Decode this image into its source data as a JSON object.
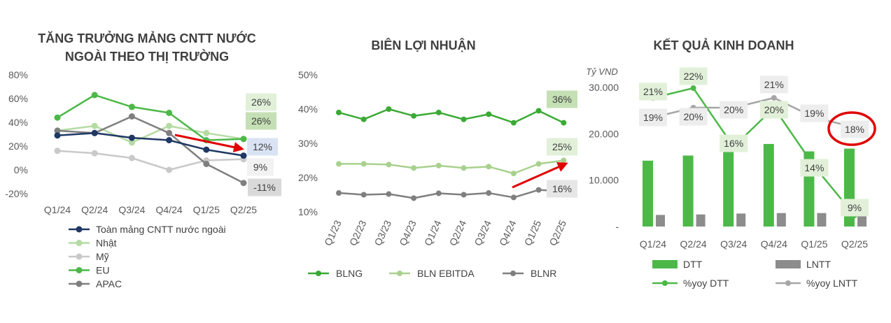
{
  "chart_data": [
    {
      "type": "line",
      "title": "TĂNG TRƯỞNG MẢNG CNTT NƯỚC NGOÀI THEO THỊ TRƯỜNG",
      "title_lines": [
        "TĂNG TRƯỞNG MẢNG CNTT NƯỚC",
        "NGOÀI THEO THỊ TRƯỜNG"
      ],
      "categories": [
        "Q1/24",
        "Q2/24",
        "Q3/24",
        "Q4/24",
        "Q1/25",
        "Q2/25"
      ],
      "ylim": [
        -20,
        80
      ],
      "yticks": [
        "80%",
        "60%",
        "40%",
        "20%",
        "0%",
        "-20%"
      ],
      "legend_position": "bottom-left",
      "series": [
        {
          "name": "Toàn mảng CNTT nước ngoài",
          "values": [
            29,
            31,
            27,
            25,
            17,
            12
          ],
          "color": "#1f3864",
          "end_label": "12%",
          "label_bg": "#dae3f3"
        },
        {
          "name": "Nhật",
          "values": [
            33,
            37,
            23,
            37,
            31,
            26
          ],
          "color": "#b4dba3",
          "end_label": "26%",
          "label_bg": "#e2f0d9"
        },
        {
          "name": "Mỹ",
          "values": [
            16,
            14,
            10,
            0,
            8,
            9
          ],
          "color": "#c9c9c9",
          "end_label": "9%",
          "label_bg": "#f2f2f2"
        },
        {
          "name": "EU",
          "values": [
            44,
            63,
            53,
            48,
            25,
            26
          ],
          "color": "#4cb848",
          "end_label": "26%",
          "label_bg": "#c5e0b4"
        },
        {
          "name": "APAC",
          "values": [
            33,
            31,
            45,
            31,
            5,
            -11
          ],
          "color": "#7f7f7f",
          "end_label": "-11%",
          "label_bg": "#d9d9d9"
        }
      ]
    },
    {
      "type": "line",
      "title": "BIÊN LỢI NHUẬN",
      "categories": [
        "Q1/23",
        "Q2/23",
        "Q3/23",
        "Q4/23",
        "Q1/24",
        "Q2/24",
        "Q3/24",
        "Q4/24",
        "Q1/25",
        "Q2/25"
      ],
      "ylim": [
        10,
        50
      ],
      "yticks": [
        "50%",
        "40%",
        "30%",
        "20%",
        "10%"
      ],
      "legend_position": "bottom",
      "series": [
        {
          "name": "BLNG",
          "values": [
            39,
            37,
            40,
            38,
            39,
            37,
            38.5,
            36,
            39.5,
            36
          ],
          "color": "#3aaa35",
          "end_label": "36%",
          "label_bg": "#c5e0b4"
        },
        {
          "name": "BLN EBITDA",
          "values": [
            24,
            24,
            23.8,
            22.8,
            23.5,
            22.8,
            23.2,
            21.2,
            24,
            25
          ],
          "color": "#a9d18e",
          "end_label": "25%",
          "label_bg": "#e2f0d9"
        },
        {
          "name": "BLNR",
          "values": [
            15.5,
            15,
            15.2,
            14,
            15.4,
            15,
            15.5,
            14.2,
            16.4,
            16
          ],
          "color": "#7f7f7f",
          "end_label": "16%",
          "label_bg": "#e7e6e6"
        }
      ]
    },
    {
      "type": "bar",
      "title": "KẾT QUẢ KINH DOANH",
      "unit": "Tỷ VND",
      "categories": [
        "Q1/24",
        "Q2/24",
        "Q3/24",
        "Q4/24",
        "Q1/25",
        "Q2/25"
      ],
      "ylim": [
        0,
        30000
      ],
      "yticks": [
        "30.000",
        "20.000",
        "10.000",
        "-"
      ],
      "legend_position": "bottom",
      "series": [
        {
          "name": "DTT",
          "kind": "bar",
          "values": [
            14200,
            15300,
            16200,
            17800,
            16200,
            16800
          ],
          "color": "#4cb848"
        },
        {
          "name": "LNTT",
          "kind": "bar",
          "values": [
            2500,
            2600,
            2800,
            2900,
            2900,
            3100
          ],
          "color": "#8c8c8c"
        },
        {
          "name": "%yoy DTT",
          "kind": "line",
          "values": [
            21,
            22,
            16,
            20,
            14,
            9
          ],
          "labels": [
            "21%",
            "22%",
            "16%",
            "20%",
            "14%",
            "9%"
          ],
          "color": "#4cb848",
          "label_bg": "#e2f0d9"
        },
        {
          "name": "%yoy LNTT",
          "kind": "line",
          "values": [
            19,
            20,
            20,
            21,
            19,
            18
          ],
          "labels": [
            "19%",
            "20%",
            "20%",
            "21%",
            "19%",
            "18%"
          ],
          "color": "#a6a6a6",
          "label_bg": "#ededed"
        }
      ]
    }
  ]
}
